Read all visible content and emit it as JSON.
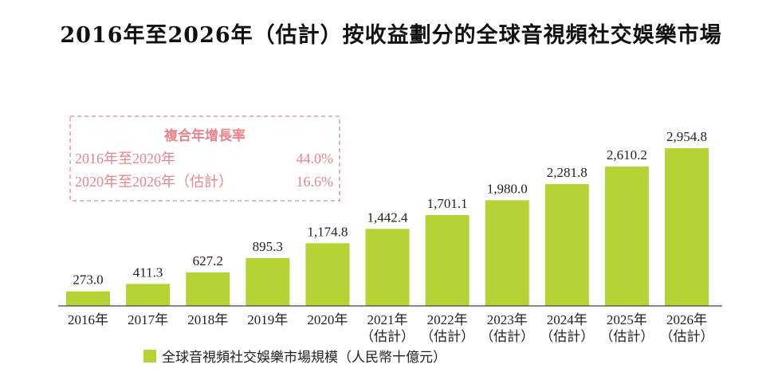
{
  "colors": {
    "bar": "#b5d334",
    "axis": "#444444",
    "cagr": "#e8848c"
  },
  "chart_data": {
    "type": "bar",
    "title": "2016年至2026年（估計）按收益劃分的全球音視頻社交娛樂市場",
    "categories": [
      {
        "year": "2016年",
        "note": ""
      },
      {
        "year": "2017年",
        "note": ""
      },
      {
        "year": "2018年",
        "note": ""
      },
      {
        "year": "2019年",
        "note": ""
      },
      {
        "year": "2020年",
        "note": ""
      },
      {
        "year": "2021年",
        "note": "（估計）"
      },
      {
        "year": "2022年",
        "note": "（估計）"
      },
      {
        "year": "2023年",
        "note": "（估計）"
      },
      {
        "year": "2024年",
        "note": "（估計）"
      },
      {
        "year": "2025年",
        "note": "（估計）"
      },
      {
        "year": "2026年",
        "note": "（估計）"
      }
    ],
    "values": [
      273.0,
      411.3,
      627.2,
      895.3,
      1174.8,
      1442.4,
      1701.1,
      1980.0,
      2281.8,
      2610.2,
      2954.8
    ],
    "value_labels": [
      "273.0",
      "411.3",
      "627.2",
      "895.3",
      "1,174.8",
      "1,442.4",
      "1,701.1",
      "1,980.0",
      "2,281.8",
      "2,610.2",
      "2,954.8"
    ],
    "ylim": [
      0,
      2954.8
    ],
    "legend": "全球音視頻社交娛樂市場規模（人民幣十億元）",
    "legend_position": "bottom-left"
  },
  "cagr": {
    "title": "複合年增長率",
    "rows": [
      {
        "period": "2016年至2020年",
        "rate": "44.0%"
      },
      {
        "period": "2020年至2026年（估計）",
        "rate": "16.6%"
      }
    ]
  }
}
